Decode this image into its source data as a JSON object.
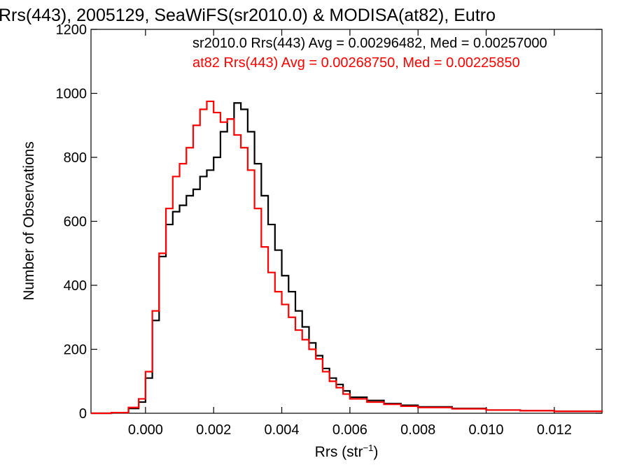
{
  "chart_data": {
    "type": "line",
    "step": true,
    "title": "Rrs(443), 2005129, SeaWiFS(sr2010.0) & MODISA(at82), Eutro",
    "xlabel": "Rrs (str",
    "xlabel_sup": "−1",
    "xlabel_end": ")",
    "ylabel": "Number of Observations",
    "xlim": [
      -0.0016,
      0.0134
    ],
    "ylim": [
      0,
      1200
    ],
    "x_ticks": [
      0.0,
      0.002,
      0.004,
      0.006,
      0.008,
      0.01,
      0.012
    ],
    "x_tick_labels": [
      "0.000",
      "0.002",
      "0.004",
      "0.006",
      "0.008",
      "0.010",
      "0.012"
    ],
    "y_ticks": [
      0,
      200,
      400,
      600,
      800,
      1000,
      1200
    ],
    "y_tick_labels": [
      "0",
      "200",
      "400",
      "600",
      "800",
      "1000",
      "1200"
    ],
    "legend": [
      {
        "text": "sr2010.0 Rrs(443) Avg = 0.00296482, Med = 0.00257000",
        "color": "#000000"
      },
      {
        "text": "at82 Rrs(443) Avg = 0.00268750, Med = 0.00225850",
        "color": "#ff0000"
      }
    ],
    "legend_placement": "top-right",
    "series": [
      {
        "color": "#000000",
        "x": [
          -0.0016,
          -0.001,
          -0.0005,
          -0.0002,
          0.0,
          0.0002,
          0.0004,
          0.0006,
          0.0008,
          0.001,
          0.0012,
          0.0014,
          0.0016,
          0.0018,
          0.002,
          0.0022,
          0.0024,
          0.0026,
          0.0028,
          0.003,
          0.0032,
          0.0034,
          0.0036,
          0.0038,
          0.004,
          0.0042,
          0.0044,
          0.0046,
          0.0048,
          0.005,
          0.0052,
          0.0054,
          0.0056,
          0.0058,
          0.006,
          0.0065,
          0.007,
          0.0075,
          0.008,
          0.009,
          0.01,
          0.011,
          0.012,
          0.0134
        ],
        "values": [
          0,
          2,
          15,
          35,
          110,
          290,
          490,
          590,
          630,
          650,
          680,
          700,
          740,
          760,
          800,
          880,
          920,
          970,
          950,
          880,
          780,
          680,
          590,
          510,
          430,
          380,
          320,
          270,
          220,
          180,
          140,
          110,
          90,
          70,
          50,
          40,
          30,
          25,
          20,
          15,
          10,
          8,
          6,
          4
        ]
      },
      {
        "color": "#ff0000",
        "x": [
          -0.0016,
          -0.001,
          -0.0005,
          -0.0002,
          0.0,
          0.0002,
          0.0004,
          0.0006,
          0.0008,
          0.001,
          0.0012,
          0.0014,
          0.0016,
          0.0018,
          0.002,
          0.0022,
          0.0024,
          0.0026,
          0.0028,
          0.003,
          0.0032,
          0.0034,
          0.0036,
          0.0038,
          0.004,
          0.0042,
          0.0044,
          0.0046,
          0.0048,
          0.005,
          0.0052,
          0.0054,
          0.0056,
          0.0058,
          0.006,
          0.0065,
          0.007,
          0.0075,
          0.008,
          0.009,
          0.01,
          0.011,
          0.012,
          0.0134
        ],
        "values": [
          0,
          2,
          18,
          45,
          130,
          320,
          500,
          640,
          740,
          780,
          830,
          900,
          950,
          975,
          940,
          910,
          920,
          870,
          830,
          760,
          640,
          520,
          440,
          380,
          340,
          300,
          260,
          230,
          200,
          170,
          130,
          100,
          80,
          60,
          45,
          35,
          28,
          22,
          18,
          14,
          10,
          8,
          6,
          4
        ]
      }
    ]
  }
}
